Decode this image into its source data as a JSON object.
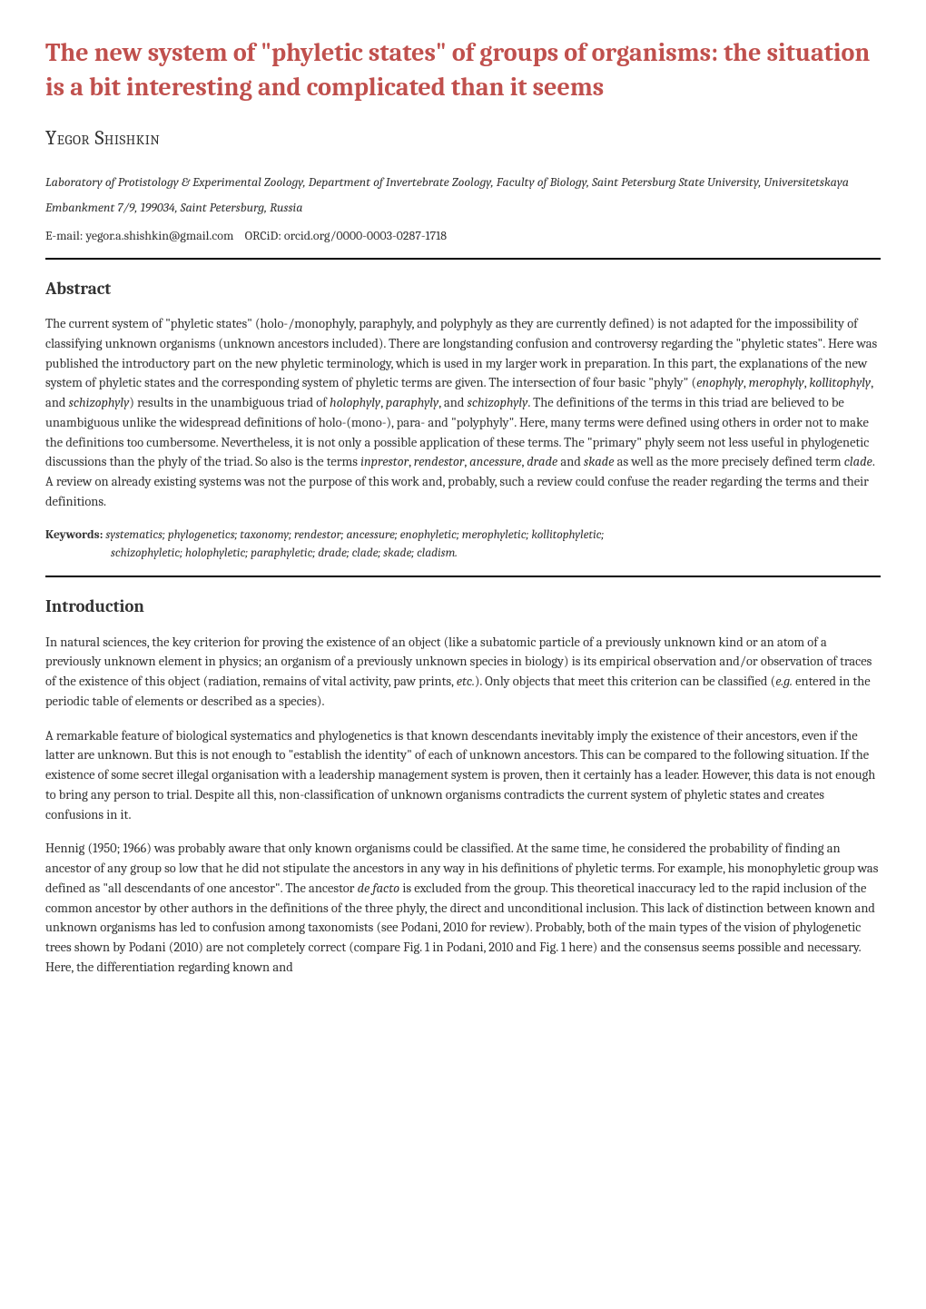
{
  "title": "The new system of \"phyletic states\" of groups of organisms: the situation is a bit interesting and complicated than it seems",
  "author": "Yegor Shishkin",
  "affiliation": "Laboratory of Protistology & Experimental Zoology, Department of Invertebrate Zoology, Faculty of Biology, Saint Petersburg State University, Universitetskaya Embankment 7/9, 199034, Saint Petersburg, Russia",
  "contact": {
    "email_label": "E-mail:",
    "email": "yegor.a.shishkin@gmail.com",
    "orcid_label": "ORCiD:",
    "orcid": "orcid.org/0000-0003-0287-1718"
  },
  "abstract": {
    "heading": "Abstract",
    "body_html": "The current system of \"phyletic states\" (holo-/monophyly, paraphyly, and polyphyly as they are currently defined) is not adapted for the impossibility of classifying unknown organisms (unknown ancestors included). There are longstanding confusion and controversy regarding the \"phyletic states\". Here was published the introductory part on the new phyletic terminology, which is used in my larger work in preparation. In this part, the explanations of the new system of phyletic states and the corresponding system of phyletic terms are given. The intersection of four basic \"phyly\" (<em>enophyly</em>, <em>merophyly</em>, <em>kollitophyly</em>, and <em>schizophyly</em>) results in the unambiguous triad of <em>holophyly</em>, <em>paraphyly</em>, and <em>schizophyly</em>. The definitions of the terms in this triad are believed to be unambiguous unlike the widespread definitions of holo-(mono-), para- and \"polyphyly\". Here, many terms were defined using others in order not to make the definitions too cumbersome. Nevertheless, it is not only a possible application of these terms. The \"primary\" phyly seem not less useful in phylogenetic discussions than the phyly of the triad. So also is the terms <em>inprestor</em>, <em>rendestor</em>, <em>ancessure</em>, <em>drade</em> and <em>skade</em> as well as the more precisely defined term <em>clade</em>. A review on already existing systems was not the purpose of this work and, probably, such a review could confuse the reader regarding the terms and their definitions."
  },
  "keywords": {
    "label": "Keywords:",
    "line1": "systematics; phylogenetics; taxonomy; rendestor; ancessure; enophyletic; merophyletic; kollitophyletic;",
    "line2": "schizophyletic; holophyletic; paraphyletic; drade; clade; skade; cladism."
  },
  "introduction": {
    "heading": "Introduction",
    "paragraphs_html": [
      "In natural sciences, the key criterion for proving the existence of an object (like a subatomic particle of a previously unknown kind or an atom of a previously unknown element in physics; an organism of a previously unknown species in biology) is its empirical observation and/or observation of traces of the existence of this object (radiation, remains of vital activity, paw prints, <em>etc.</em>). Only objects that meet this criterion can be classified (<em>e.g.</em> entered in the periodic table of elements or described as a species).",
      "A remarkable feature of biological systematics and phylogenetics is that known descendants inevitably imply the existence of their ancestors, even if the latter are unknown. But this is not enough to \"establish the identity\" of each of unknown ancestors. This can be compared to the following situation. If the existence of some secret illegal organisation with a leadership management system is proven, then it certainly has a leader. However, this data is not enough to bring any person to trial. Despite all this, non-classification of unknown organisms contradicts the current system of phyletic states and creates confusions in it.",
      "Hennig (1950; 1966) was probably aware that only known organisms could be classified. At the same time, he considered the probability of finding an ancestor of any group so low that he did not stipulate the ancestors in any way in his definitions of phyletic terms. For example, his monophyletic group was defined as \"all descendants of one ancestor\". The ancestor <em>de facto</em> is excluded from the group. This theoretical inaccuracy led to the rapid inclusion of the common ancestor by other authors in the definitions of the three phyly, the direct and unconditional inclusion. This lack of distinction between known and unknown organisms has led to confusion among taxonomists (see Podani, 2010 for review). Probably, both of the main types of the vision of phylogenetic trees shown by Podani (2010) are not completely correct (compare Fig. 1 in Podani, 2010 and Fig. 1 here) and the consensus seems possible and necessary. Here, the differentiation regarding known and"
    ]
  },
  "colors": {
    "title_color": "#c0504d",
    "text_color": "#333333",
    "rule_color": "#000000",
    "background": "#ffffff"
  }
}
